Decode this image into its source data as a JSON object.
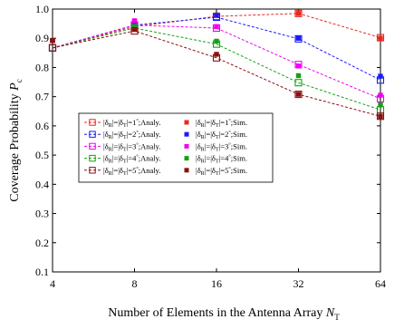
{
  "chart_data": {
    "type": "line",
    "xlabel": "Number of  Elements in the Antenna Array N",
    "xlabel_sub": "T",
    "ylabel": "Coverage Probability P",
    "ylabel_sub": "c",
    "x_scale": "log2",
    "x": [
      4,
      8,
      16,
      32,
      64
    ],
    "x_ticks": [
      "4",
      "8",
      "16",
      "32",
      "64"
    ],
    "ylim": [
      0.1,
      1.0
    ],
    "y_ticks": [
      "0.1",
      "0.2",
      "0.3",
      "0.4",
      "0.5",
      "0.6",
      "0.7",
      "0.8",
      "0.9",
      "1.0"
    ],
    "grid": false,
    "legend_position": "center-left",
    "series": [
      {
        "name": "|δ_R|=|δ_T|=1°;Analy.",
        "style": "dashed-open-square",
        "color": "#e8281e",
        "values": [
          0.867,
          0.94,
          0.975,
          0.985,
          0.902
        ]
      },
      {
        "name": "|δ_R|=|δ_T|=2°;Analy.",
        "style": "dashed-open-square",
        "color": "#1a1aff",
        "values": [
          0.867,
          0.945,
          0.972,
          0.898,
          0.757
        ]
      },
      {
        "name": "|δ_R|=|δ_T|=3°;Analy.",
        "style": "dashed-open-square",
        "color": "#f000f0",
        "values": [
          0.867,
          0.945,
          0.935,
          0.81,
          0.693
        ]
      },
      {
        "name": "|δ_R|=|δ_T|=4°;Analy.",
        "style": "dashed-open-square",
        "color": "#13a313",
        "values": [
          0.867,
          0.935,
          0.88,
          0.748,
          0.655
        ]
      },
      {
        "name": "|δ_R|=|δ_T|=5°;Analy.",
        "style": "dashed-open-square",
        "color": "#8b1010",
        "values": [
          0.867,
          0.925,
          0.833,
          0.708,
          0.633
        ]
      },
      {
        "name": "|δ_R|=|δ_T|=1°;Sim.",
        "style": "filled-square",
        "color": "#e8281e",
        "values": [
          0.893,
          0.948,
          0.98,
          0.985,
          0.9
        ]
      },
      {
        "name": "|δ_R|=|δ_T|=2°;Sim.",
        "style": "filled-square",
        "color": "#1a1aff",
        "values": [
          0.892,
          0.955,
          0.978,
          0.9,
          0.77
        ]
      },
      {
        "name": "|δ_R|=|δ_T|=3°;Sim.",
        "style": "filled-square",
        "color": "#f000f0",
        "values": [
          0.892,
          0.96,
          0.94,
          0.805,
          0.705
        ]
      },
      {
        "name": "|δ_R|=|δ_T|=4°;Sim.",
        "style": "filled-square",
        "color": "#13a313",
        "values": [
          0.892,
          0.94,
          0.89,
          0.772,
          0.672
        ]
      },
      {
        "name": "|δ_R|=|δ_T|=5°;Sim.",
        "style": "filled-square",
        "color": "#8b1010",
        "values": [
          0.892,
          0.93,
          0.845,
          0.708,
          0.632
        ]
      }
    ]
  }
}
